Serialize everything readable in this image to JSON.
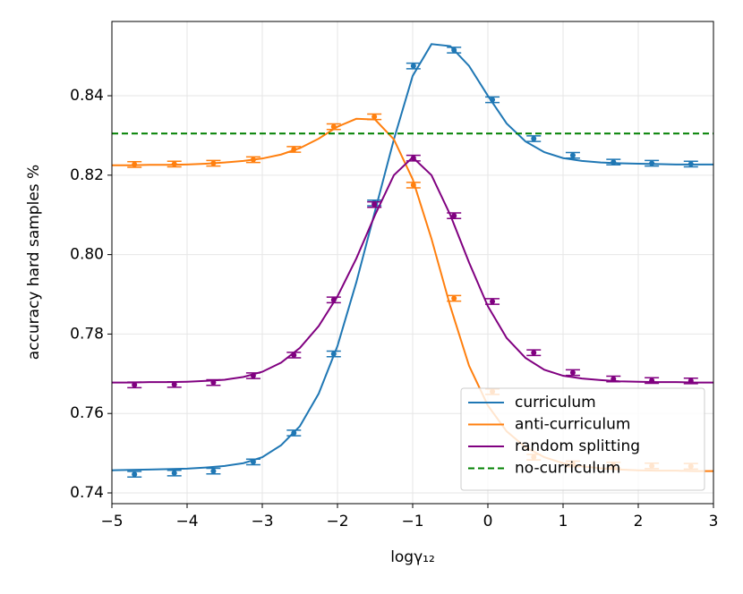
{
  "chart_data": {
    "type": "line",
    "xlabel": "logγ₁₂",
    "ylabel": "accuracy hard samples %",
    "xlim": [
      -5,
      3
    ],
    "ylim": [
      0.7373,
      0.8587
    ],
    "xticks": [
      {
        "value": -5,
        "label": "−5"
      },
      {
        "value": -4,
        "label": "−4"
      },
      {
        "value": -3,
        "label": "−3"
      },
      {
        "value": -2,
        "label": "−2"
      },
      {
        "value": -1,
        "label": "−1"
      },
      0,
      1,
      2,
      3
    ],
    "yticks": [
      0.74,
      0.76,
      0.78,
      {
        "value": 0.8,
        "label": "0.80"
      },
      0.82,
      0.84
    ],
    "grid": true,
    "legend": "lower right",
    "x": [
      -5,
      -4.75,
      -4.5,
      -4.25,
      -4,
      -3.75,
      -3.5,
      -3.25,
      -3,
      -2.75,
      -2.5,
      -2.25,
      -2,
      -1.75,
      -1.5,
      -1.25,
      -1,
      -0.75,
      -0.5,
      -0.25,
      0,
      0.25,
      0.5,
      0.75,
      1,
      1.25,
      1.5,
      1.75,
      2,
      2.25,
      2.5,
      2.75,
      3
    ],
    "point_x": [
      -4.7,
      -4.17,
      -3.65,
      -3.12,
      -2.58,
      -2.05,
      -1.51,
      -0.99,
      -0.45,
      0.06,
      0.61,
      1.13,
      1.67,
      2.18,
      2.7
    ],
    "series": [
      {
        "name": "curriculum",
        "color": "#1f77b4",
        "values": [
          0.7457,
          0.7458,
          0.7459,
          0.746,
          0.7461,
          0.7464,
          0.7468,
          0.7475,
          0.749,
          0.752,
          0.7568,
          0.765,
          0.777,
          0.793,
          0.811,
          0.829,
          0.845,
          0.853,
          0.8525,
          0.8475,
          0.84,
          0.833,
          0.8285,
          0.8258,
          0.8243,
          0.8236,
          0.8232,
          0.823,
          0.8229,
          0.8228,
          0.8227,
          0.8227,
          0.8227
        ],
        "point_values": [
          0.7447,
          0.745,
          0.7455,
          0.7478,
          0.7551,
          0.775,
          0.813,
          0.8475,
          0.8515,
          0.839,
          0.8292,
          0.825,
          0.8233,
          0.823,
          0.8228
        ],
        "point_errors": [
          0.0007,
          0.0007,
          0.0007,
          0.0007,
          0.0007,
          0.0007,
          0.0007,
          0.0007,
          0.0007,
          0.0007,
          0.0007,
          0.0007,
          0.0007,
          0.0007,
          0.0007
        ]
      },
      {
        "name": "anti-curriculum",
        "color": "#ff7f0e",
        "values": [
          0.8225,
          0.8225,
          0.8226,
          0.8226,
          0.8227,
          0.8229,
          0.8232,
          0.8236,
          0.8242,
          0.8252,
          0.8268,
          0.8292,
          0.8322,
          0.8342,
          0.834,
          0.829,
          0.819,
          0.804,
          0.787,
          0.772,
          0.762,
          0.7555,
          0.7515,
          0.749,
          0.7475,
          0.7467,
          0.7462,
          0.7459,
          0.7457,
          0.7456,
          0.7456,
          0.7455,
          0.7455
        ],
        "point_values": [
          0.8227,
          0.8228,
          0.823,
          0.8239,
          0.8265,
          0.8322,
          0.8347,
          0.8175,
          0.789,
          0.7655,
          0.749,
          0.7473,
          0.747,
          0.7468,
          0.7467
        ],
        "point_errors": [
          0.0007,
          0.0007,
          0.0007,
          0.0007,
          0.0007,
          0.0007,
          0.0007,
          0.0007,
          0.0007,
          0.0007,
          0.0007,
          0.0007,
          0.0007,
          0.0007,
          0.0007
        ]
      },
      {
        "name": "random splitting",
        "color": "#800080",
        "values": [
          0.7678,
          0.7678,
          0.7679,
          0.7679,
          0.768,
          0.7682,
          0.7685,
          0.7692,
          0.7705,
          0.7728,
          0.7765,
          0.782,
          0.7895,
          0.799,
          0.81,
          0.82,
          0.8245,
          0.82,
          0.81,
          0.798,
          0.787,
          0.779,
          0.774,
          0.771,
          0.7695,
          0.7688,
          0.7684,
          0.7681,
          0.768,
          0.7679,
          0.7679,
          0.7678,
          0.7678
        ],
        "point_values": [
          0.7672,
          0.7673,
          0.7678,
          0.7695,
          0.7747,
          0.7886,
          0.8126,
          0.8243,
          0.8098,
          0.7882,
          0.7753,
          0.7703,
          0.7687,
          0.7683,
          0.7682
        ],
        "point_errors": [
          0.0007,
          0.0007,
          0.0007,
          0.0007,
          0.0007,
          0.0007,
          0.0007,
          0.0007,
          0.0007,
          0.0007,
          0.0007,
          0.0007,
          0.0007,
          0.0007,
          0.0007
        ]
      },
      {
        "name": "no-curriculum",
        "color": "#008000",
        "linestyle": "dashed",
        "value": 0.8305
      }
    ]
  }
}
